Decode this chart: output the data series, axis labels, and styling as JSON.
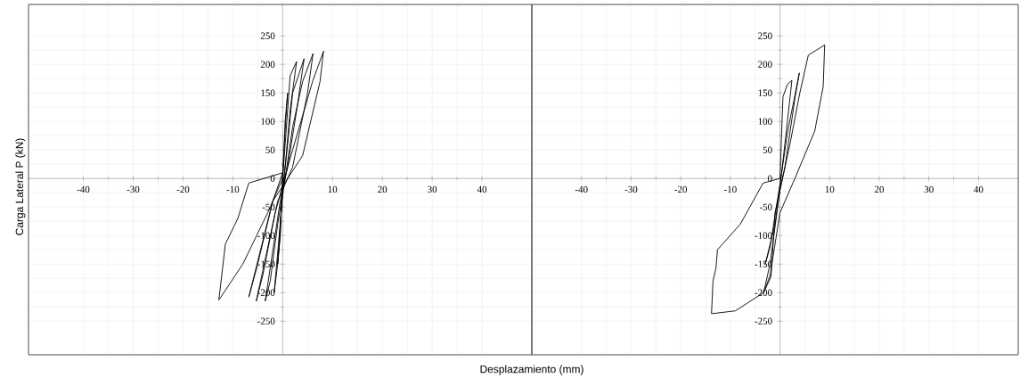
{
  "chart_data": [
    {
      "type": "line",
      "ylabel": "Carga Lateral P (kN)",
      "xlabel": "Desplazamiento (mm)",
      "series": [
        {
          "color": "#000000",
          "x": [
            0,
            0.5,
            1
          ],
          "values": [
            0,
            100,
            150
          ]
        },
        {
          "color": "#000000",
          "x": [
            1,
            0.6,
            0,
            -0.5,
            -1
          ],
          "values": [
            150,
            100,
            10,
            -100,
            -150
          ]
        },
        {
          "color": "#000000",
          "x": [
            -1,
            -0.5,
            0,
            1.5,
            2.8
          ],
          "values": [
            -150,
            -100,
            0,
            180,
            205
          ]
        },
        {
          "color": "#000000",
          "x": [
            2.8,
            1.5,
            0.3,
            -1.7
          ],
          "values": [
            205,
            120,
            0,
            -200
          ]
        },
        {
          "color": "#000000",
          "x": [
            -1.7,
            -1,
            0,
            1,
            2,
            4.3
          ],
          "values": [
            -200,
            -150,
            -20,
            60,
            150,
            210
          ]
        },
        {
          "color": "#000000",
          "x": [
            4.3,
            3,
            1,
            -0.5,
            -3.5
          ],
          "values": [
            210,
            130,
            20,
            -40,
            -215
          ]
        },
        {
          "color": "#000000",
          "x": [
            -3.5,
            -2.5,
            -1,
            0.5,
            2,
            4,
            6.1
          ],
          "values": [
            -215,
            -180,
            -80,
            0,
            90,
            170,
            219
          ]
        },
        {
          "color": "#000000",
          "x": [
            6.1,
            5,
            2,
            -1,
            -5.3
          ],
          "values": [
            219,
            150,
            20,
            -40,
            -215
          ]
        },
        {
          "color": "#000000",
          "x": [
            -5.3,
            -4,
            -1.5,
            1,
            3,
            6,
            8.2
          ],
          "values": [
            -215,
            -170,
            -60,
            20,
            80,
            170,
            223
          ]
        },
        {
          "color": "#000000",
          "x": [
            8.2,
            7.5,
            4,
            1,
            -2,
            -6.8
          ],
          "values": [
            223,
            170,
            40,
            0,
            -40,
            -208
          ]
        },
        {
          "color": "#000000",
          "x": [
            -6.8,
            -5,
            -2,
            0
          ],
          "values": [
            -208,
            -150,
            -40,
            10
          ]
        },
        {
          "color": "#000000",
          "x": [
            0,
            -6.8,
            -9,
            -11.5,
            -12.8
          ],
          "values": [
            10,
            -8,
            -70,
            -115,
            -213
          ]
        },
        {
          "color": "#000000",
          "x": [
            -12.8,
            -8,
            -3,
            0
          ],
          "values": [
            -213,
            -150,
            -60,
            0
          ]
        }
      ],
      "xlim": [
        -51,
        50
      ],
      "ylim": [
        -309,
        305
      ],
      "xticks": [
        -40,
        -30,
        -20,
        -10,
        {
          "value": 0,
          "label": null
        },
        10,
        20,
        30,
        40
      ],
      "yticks": [
        -250,
        -200,
        -150,
        -100,
        -50,
        0,
        50,
        100,
        150,
        200,
        250
      ],
      "grid": true
    },
    {
      "type": "line",
      "series": [
        {
          "color": "#000000",
          "x": [
            0,
            0.6,
            1.5,
            2.4
          ],
          "values": [
            0,
            143,
            165,
            172
          ]
        },
        {
          "color": "#000000",
          "x": [
            2.4,
            1.5,
            0.2,
            -1,
            -3
          ],
          "values": [
            172,
            100,
            0,
            -80,
            -151
          ]
        },
        {
          "color": "#000000",
          "x": [
            -3,
            -2,
            0,
            1.5,
            3.9
          ],
          "values": [
            -151,
            -120,
            -10,
            80,
            185
          ]
        },
        {
          "color": "#000000",
          "x": [
            3.9,
            3,
            1,
            -1,
            -1.8,
            -3.3
          ],
          "values": [
            185,
            140,
            20,
            -60,
            -172,
            -200
          ]
        },
        {
          "color": "#000000",
          "x": [
            -3.3,
            -2,
            0,
            2,
            4,
            5.7,
            9
          ],
          "values": [
            -200,
            -150,
            -20,
            60,
            150,
            216,
            234
          ]
        },
        {
          "color": "#000000",
          "x": [
            9,
            8.7,
            7,
            3,
            0,
            -2,
            -3.3,
            -9,
            -13.8
          ],
          "values": [
            234,
            161,
            83,
            0,
            -60,
            -170,
            -200,
            -232,
            -237
          ]
        },
        {
          "color": "#000000",
          "x": [
            -13.8,
            -13.5,
            -12.9,
            -12.6,
            -8,
            -3.4,
            0
          ],
          "values": [
            -237,
            -180,
            -157,
            -125,
            -80,
            -8,
            0
          ]
        }
      ],
      "xlim": [
        -50,
        48
      ],
      "ylim": [
        -309,
        305
      ],
      "xticks": [
        -40,
        -30,
        -20,
        -10,
        {
          "value": 0,
          "label": null
        },
        10,
        20,
        30,
        40
      ],
      "yticks": [
        -250,
        -200,
        -150,
        -100,
        -50,
        0,
        50,
        100,
        150,
        200,
        250
      ],
      "grid": true
    }
  ]
}
